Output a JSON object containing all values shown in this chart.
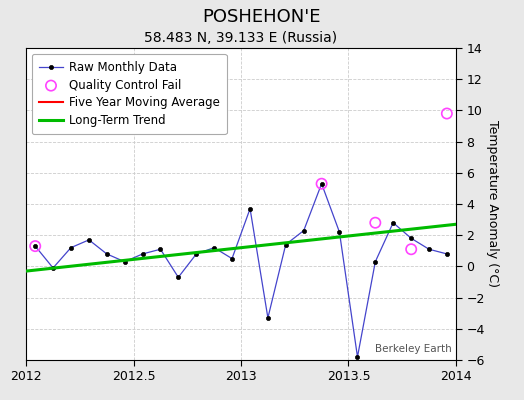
{
  "title": "POSHEHON'E",
  "subtitle": "58.483 N, 39.133 E (Russia)",
  "ylabel": "Temperature Anomaly (°C)",
  "watermark": "Berkeley Earth",
  "xlim": [
    2012.0,
    2014.0
  ],
  "ylim": [
    -6,
    14
  ],
  "yticks": [
    -6,
    -4,
    -2,
    0,
    2,
    4,
    6,
    8,
    10,
    12,
    14
  ],
  "xticks": [
    2012.0,
    2012.5,
    2013.0,
    2013.5,
    2014.0
  ],
  "raw_x": [
    2012.042,
    2012.125,
    2012.208,
    2012.292,
    2012.375,
    2012.458,
    2012.542,
    2012.625,
    2012.708,
    2012.792,
    2012.875,
    2012.958,
    2013.042,
    2013.125,
    2013.208,
    2013.292,
    2013.375,
    2013.458,
    2013.542,
    2013.625,
    2013.708,
    2013.792,
    2013.875,
    2013.958
  ],
  "raw_y": [
    1.3,
    -0.1,
    1.2,
    1.7,
    0.8,
    0.3,
    0.8,
    1.1,
    -0.7,
    0.8,
    1.2,
    0.5,
    3.7,
    -3.3,
    1.4,
    2.3,
    5.3,
    2.2,
    -5.8,
    0.3,
    2.8,
    1.8,
    1.1,
    0.8
  ],
  "qc_circles_x": [
    2012.042,
    2013.375,
    2013.625,
    2013.792,
    2013.958
  ],
  "qc_circles_y": [
    1.3,
    5.3,
    2.8,
    1.1,
    9.8
  ],
  "trend_x": [
    2012.0,
    2014.0
  ],
  "trend_y": [
    -0.3,
    2.7
  ],
  "raw_line_color": "#4444cc",
  "raw_marker_color": "#000000",
  "qc_color": "#ff44ff",
  "trend_color": "#00bb00",
  "mavg_color": "#ff0000",
  "background_color": "#e8e8e8",
  "plot_bg_color": "#ffffff",
  "grid_color": "#cccccc",
  "title_fontsize": 13,
  "subtitle_fontsize": 10,
  "ylabel_fontsize": 9,
  "tick_fontsize": 9,
  "legend_fontsize": 8.5
}
